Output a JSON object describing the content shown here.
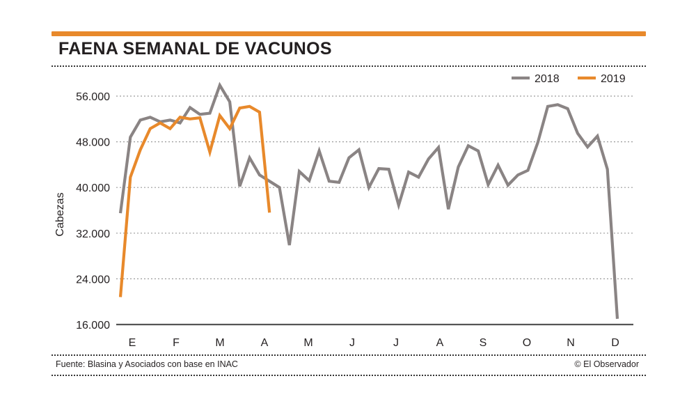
{
  "title": "FAENA SEMANAL DE VACUNOS",
  "footer": {
    "source": "Fuente: Blasina y Asociados con base en INAC",
    "credit": "© El Observador"
  },
  "colors": {
    "accent": "#e8892b",
    "series_2018": "#8a8484",
    "series_2019": "#e8892b",
    "text": "#231f20"
  },
  "chart_data": {
    "type": "line",
    "title": "FAENA SEMANAL DE VACUNOS",
    "xlabel": "",
    "ylabel": "Cabezas",
    "ylim": [
      16000,
      60000
    ],
    "yticks": [
      16000,
      24000,
      32000,
      40000,
      48000,
      56000
    ],
    "ytick_labels": [
      "16.000",
      "24.000",
      "32.000",
      "40.000",
      "48.000",
      "56.000"
    ],
    "month_labels": [
      "E",
      "F",
      "M",
      "A",
      "M",
      "J",
      "J",
      "A",
      "S",
      "O",
      "N",
      "D"
    ],
    "x_unit": "week",
    "legend_position": "top-right",
    "grid": true,
    "series": [
      {
        "name": "2018",
        "color": "#8a8484",
        "values": [
          35500,
          48800,
          51800,
          52300,
          51500,
          51800,
          51300,
          54000,
          52800,
          53000,
          57900,
          55000,
          40200,
          45200,
          42200,
          41100,
          40000,
          29900,
          42800,
          41200,
          46400,
          41100,
          40900,
          45200,
          46600,
          40000,
          43300,
          43200,
          36900,
          42700,
          41800,
          45000,
          47000,
          36200,
          43600,
          47300,
          46400,
          40500,
          43900,
          40400,
          42200,
          43000,
          47900,
          54200,
          54500,
          53800,
          49500,
          47100,
          49000,
          43200,
          17000
        ]
      },
      {
        "name": "2019",
        "color": "#e8892b",
        "values": [
          20800,
          41800,
          46600,
          50300,
          51300,
          50300,
          52300,
          52000,
          52200,
          46200,
          52600,
          50300,
          53900,
          54200,
          53200,
          35600
        ]
      }
    ]
  }
}
